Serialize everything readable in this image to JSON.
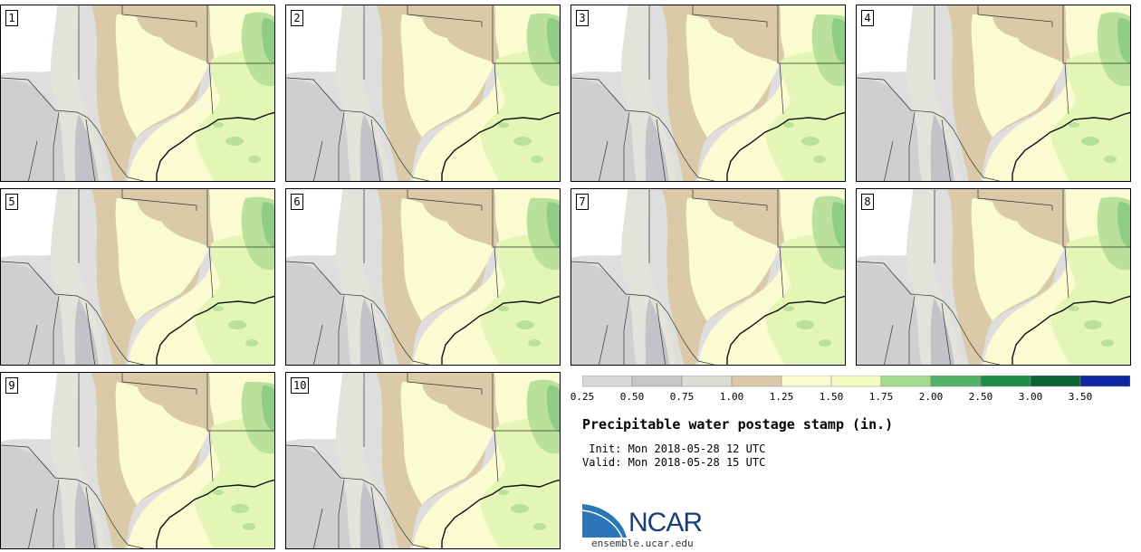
{
  "panels": [
    {
      "label": "1"
    },
    {
      "label": "2"
    },
    {
      "label": "3"
    },
    {
      "label": "4"
    },
    {
      "label": "5"
    },
    {
      "label": "6"
    },
    {
      "label": "7"
    },
    {
      "label": "8"
    },
    {
      "label": "9"
    },
    {
      "label": "10"
    }
  ],
  "colorbar": {
    "ticks": [
      "0.25",
      "0.50",
      "0.75",
      "1.00",
      "1.25",
      "1.50",
      "1.75",
      "2.00",
      "2.50",
      "3.00",
      "3.50"
    ],
    "colors": [
      "#d7d7d7",
      "#c6c6c6",
      "#dcdcd5",
      "#d9c9a8",
      "#fbfad2",
      "#f3fbc0",
      "#a6da8c",
      "#52b267",
      "#1d8d47",
      "#0d6333",
      "#0f26a2"
    ]
  },
  "title": "Precipitable water postage stamp (in.)",
  "init": " Init: Mon 2018-05-28 12 UTC",
  "valid": "Valid: Mon 2018-05-28 15 UTC",
  "logo": {
    "text": "NCAR",
    "url": "ensemble.ucar.edu"
  },
  "map_colors": {
    "white": "#ffffff",
    "light_gray": "#dedede",
    "mid_gray": "#cfcfcf",
    "gray_blue": "#c2c2c8",
    "pale_gray": "#e3e3dc",
    "tan": "#dacaa8",
    "pale_yellow": "#fbfbd2",
    "light_green": "#e3f6b6",
    "green": "#b9e19c",
    "dark_green": "#8fcd83",
    "border": "#333333"
  }
}
